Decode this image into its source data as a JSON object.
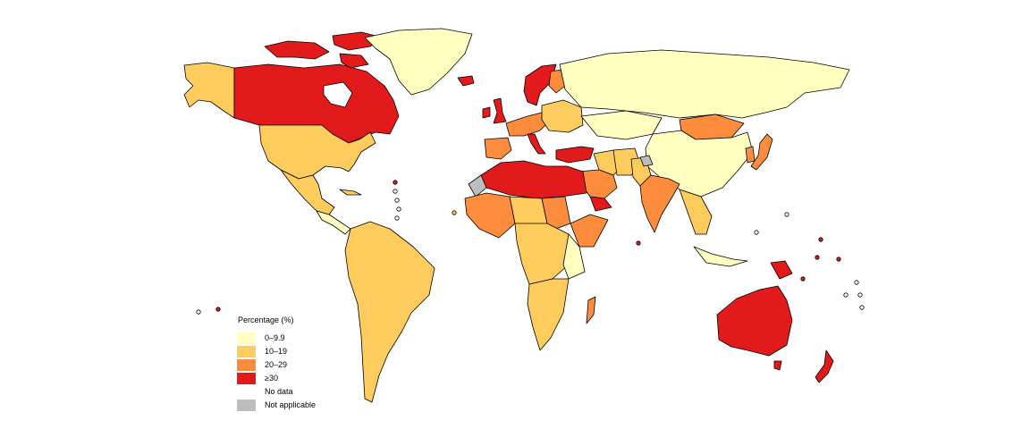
{
  "colors": {
    "c0_9": "#FFFFBF",
    "c10_19": "#FECC5C",
    "c20_29": "#FD8D3C",
    "c30": "#E31A1C",
    "no_data": "#FFFFFF",
    "not_applicable": "#BDBDBD",
    "border": "#000000",
    "background": "#FFFFFF"
  },
  "legend": {
    "title": "Percentage (%)",
    "items": [
      {
        "label": "0–9.9",
        "color": "#FFFFBF"
      },
      {
        "label": "10–19",
        "color": "#FECC5C"
      },
      {
        "label": "20–29",
        "color": "#FD8D3C"
      },
      {
        "label": "≥30",
        "color": "#E31A1C"
      },
      {
        "label": "No data",
        "color": "none"
      },
      {
        "label": "Not applicable",
        "color": "#BDBDBD"
      }
    ]
  },
  "regions": [
    {
      "name": "Alaska",
      "category": "10-19"
    },
    {
      "name": "Canada",
      "category": "30+"
    },
    {
      "name": "Canadian Arctic Archipelago",
      "category": "30+"
    },
    {
      "name": "Greenland",
      "category": "0-9.9"
    },
    {
      "name": "Iceland",
      "category": "30+"
    },
    {
      "name": "United States",
      "category": "10-19"
    },
    {
      "name": "Mexico",
      "category": "10-19"
    },
    {
      "name": "Cuba",
      "category": "10-19"
    },
    {
      "name": "Central America",
      "category": "0-9.9"
    },
    {
      "name": "South America",
      "category": "10-19"
    },
    {
      "name": "United Kingdom",
      "category": "30+"
    },
    {
      "name": "Ireland",
      "category": "30+"
    },
    {
      "name": "Scandinavia",
      "category": "30+"
    },
    {
      "name": "Finland",
      "category": "20-29"
    },
    {
      "name": "Western Europe",
      "category": "20-29"
    },
    {
      "name": "Eastern Europe",
      "category": "10-19"
    },
    {
      "name": "Iberia",
      "category": "20-29"
    },
    {
      "name": "Italy",
      "category": "30+"
    },
    {
      "name": "Russia",
      "category": "0-9.9"
    },
    {
      "name": "Kazakhstan",
      "category": "0-9.9"
    },
    {
      "name": "Mongolia",
      "category": "20-29"
    },
    {
      "name": "China",
      "category": "0-9.9"
    },
    {
      "name": "Japan",
      "category": "20-29"
    },
    {
      "name": "Korea",
      "category": "20-29"
    },
    {
      "name": "Turkey",
      "category": "30+"
    },
    {
      "name": "Middle East",
      "category": "10-19"
    },
    {
      "name": "Saudi Arabia",
      "category": "20-29"
    },
    {
      "name": "Yemen",
      "category": "30+"
    },
    {
      "name": "Iran",
      "category": "10-19"
    },
    {
      "name": "Pakistan",
      "category": "10-19"
    },
    {
      "name": "India",
      "category": "20-29"
    },
    {
      "name": "Kashmir",
      "category": "not-applicable"
    },
    {
      "name": "Southeast Asia",
      "category": "10-19"
    },
    {
      "name": "Indonesia",
      "category": "0-9.9"
    },
    {
      "name": "Papua New Guinea",
      "category": "30+"
    },
    {
      "name": "North Africa",
      "category": "30+"
    },
    {
      "name": "Western Sahara",
      "category": "not-applicable"
    },
    {
      "name": "West Africa",
      "category": "20-29"
    },
    {
      "name": "Sahel",
      "category": "10-19"
    },
    {
      "name": "Sudan",
      "category": "20-29"
    },
    {
      "name": "Horn of Africa",
      "category": "20-29"
    },
    {
      "name": "Central Africa",
      "category": "10-19"
    },
    {
      "name": "East Africa",
      "category": "0-9.9"
    },
    {
      "name": "Southern Africa",
      "category": "10-19"
    },
    {
      "name": "Madagascar",
      "category": "20-29"
    },
    {
      "name": "Australia",
      "category": "30+"
    },
    {
      "name": "New Zealand",
      "category": "30+"
    }
  ]
}
